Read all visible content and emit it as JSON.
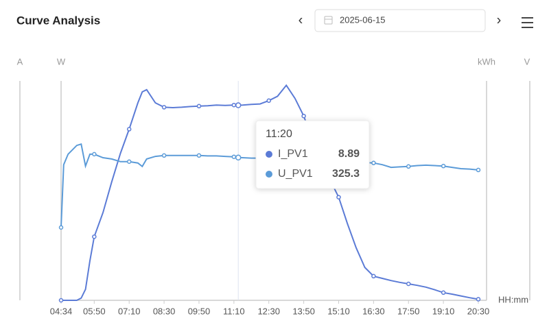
{
  "header": {
    "title": "Curve Analysis",
    "date": "2025-06-15"
  },
  "chart_data": {
    "type": "line",
    "axis_labels": {
      "left": [
        "A",
        "W"
      ],
      "right": [
        "kWh",
        "V"
      ]
    },
    "x_label": "HH:mm",
    "x": [
      "04:34",
      "04:40",
      "04:50",
      "05:10",
      "05:20",
      "05:30",
      "05:40",
      "05:50",
      "06:10",
      "06:30",
      "06:50",
      "07:10",
      "07:30",
      "07:40",
      "07:50",
      "08:10",
      "08:30",
      "08:50",
      "09:10",
      "09:30",
      "09:50",
      "10:10",
      "10:30",
      "10:50",
      "11:10",
      "11:20",
      "11:30",
      "11:50",
      "12:10",
      "12:30",
      "12:50",
      "13:10",
      "13:30",
      "13:50",
      "14:10",
      "14:30",
      "14:50",
      "15:10",
      "15:30",
      "15:50",
      "16:10",
      "16:30",
      "16:50",
      "17:10",
      "17:30",
      "17:50",
      "18:10",
      "18:30",
      "18:50",
      "19:10",
      "19:30",
      "19:50",
      "20:10",
      "20:30"
    ],
    "xticks": [
      "04:34",
      "05:50",
      "07:10",
      "08:30",
      "09:50",
      "11:10",
      "12:30",
      "13:50",
      "15:10",
      "16:30",
      "17:50",
      "19:10",
      "20:30"
    ],
    "ylim": [
      0,
      10
    ],
    "y2lim": [
      0,
      500
    ],
    "series": [
      {
        "name": "I_PV1",
        "color": "#5b7bd6",
        "values": [
          0,
          0,
          0,
          0,
          0.1,
          0.5,
          1.8,
          2.9,
          4.0,
          5.4,
          6.7,
          7.8,
          9.0,
          9.5,
          9.6,
          9.0,
          8.8,
          8.78,
          8.8,
          8.83,
          8.85,
          8.87,
          8.9,
          8.88,
          8.9,
          8.89,
          8.9,
          8.93,
          8.95,
          9.1,
          9.3,
          9.8,
          9.2,
          8.4,
          7.3,
          6.4,
          5.5,
          4.7,
          3.5,
          2.4,
          1.5,
          1.1,
          1.0,
          0.9,
          0.82,
          0.75,
          0.68,
          0.6,
          0.48,
          0.35,
          0.28,
          0.2,
          0.12,
          0.05
        ]
      },
      {
        "name": "U_PV1",
        "color": "#5b9bd8",
        "axis": "y2",
        "values": [
          166,
          309,
          333,
          353,
          356,
          306,
          333,
          333,
          325,
          322,
          316,
          316,
          313,
          305,
          322,
          328,
          330,
          330,
          330,
          330,
          330,
          329,
          329,
          328,
          327,
          325.3,
          325,
          324,
          324,
          323,
          323,
          322,
          322,
          321,
          320,
          319,
          318,
          316,
          315,
          314,
          314,
          313,
          309,
          303,
          304,
          305,
          307,
          308,
          307,
          306,
          303,
          300,
          299,
          297
        ]
      }
    ],
    "tooltip_index": 25
  }
}
